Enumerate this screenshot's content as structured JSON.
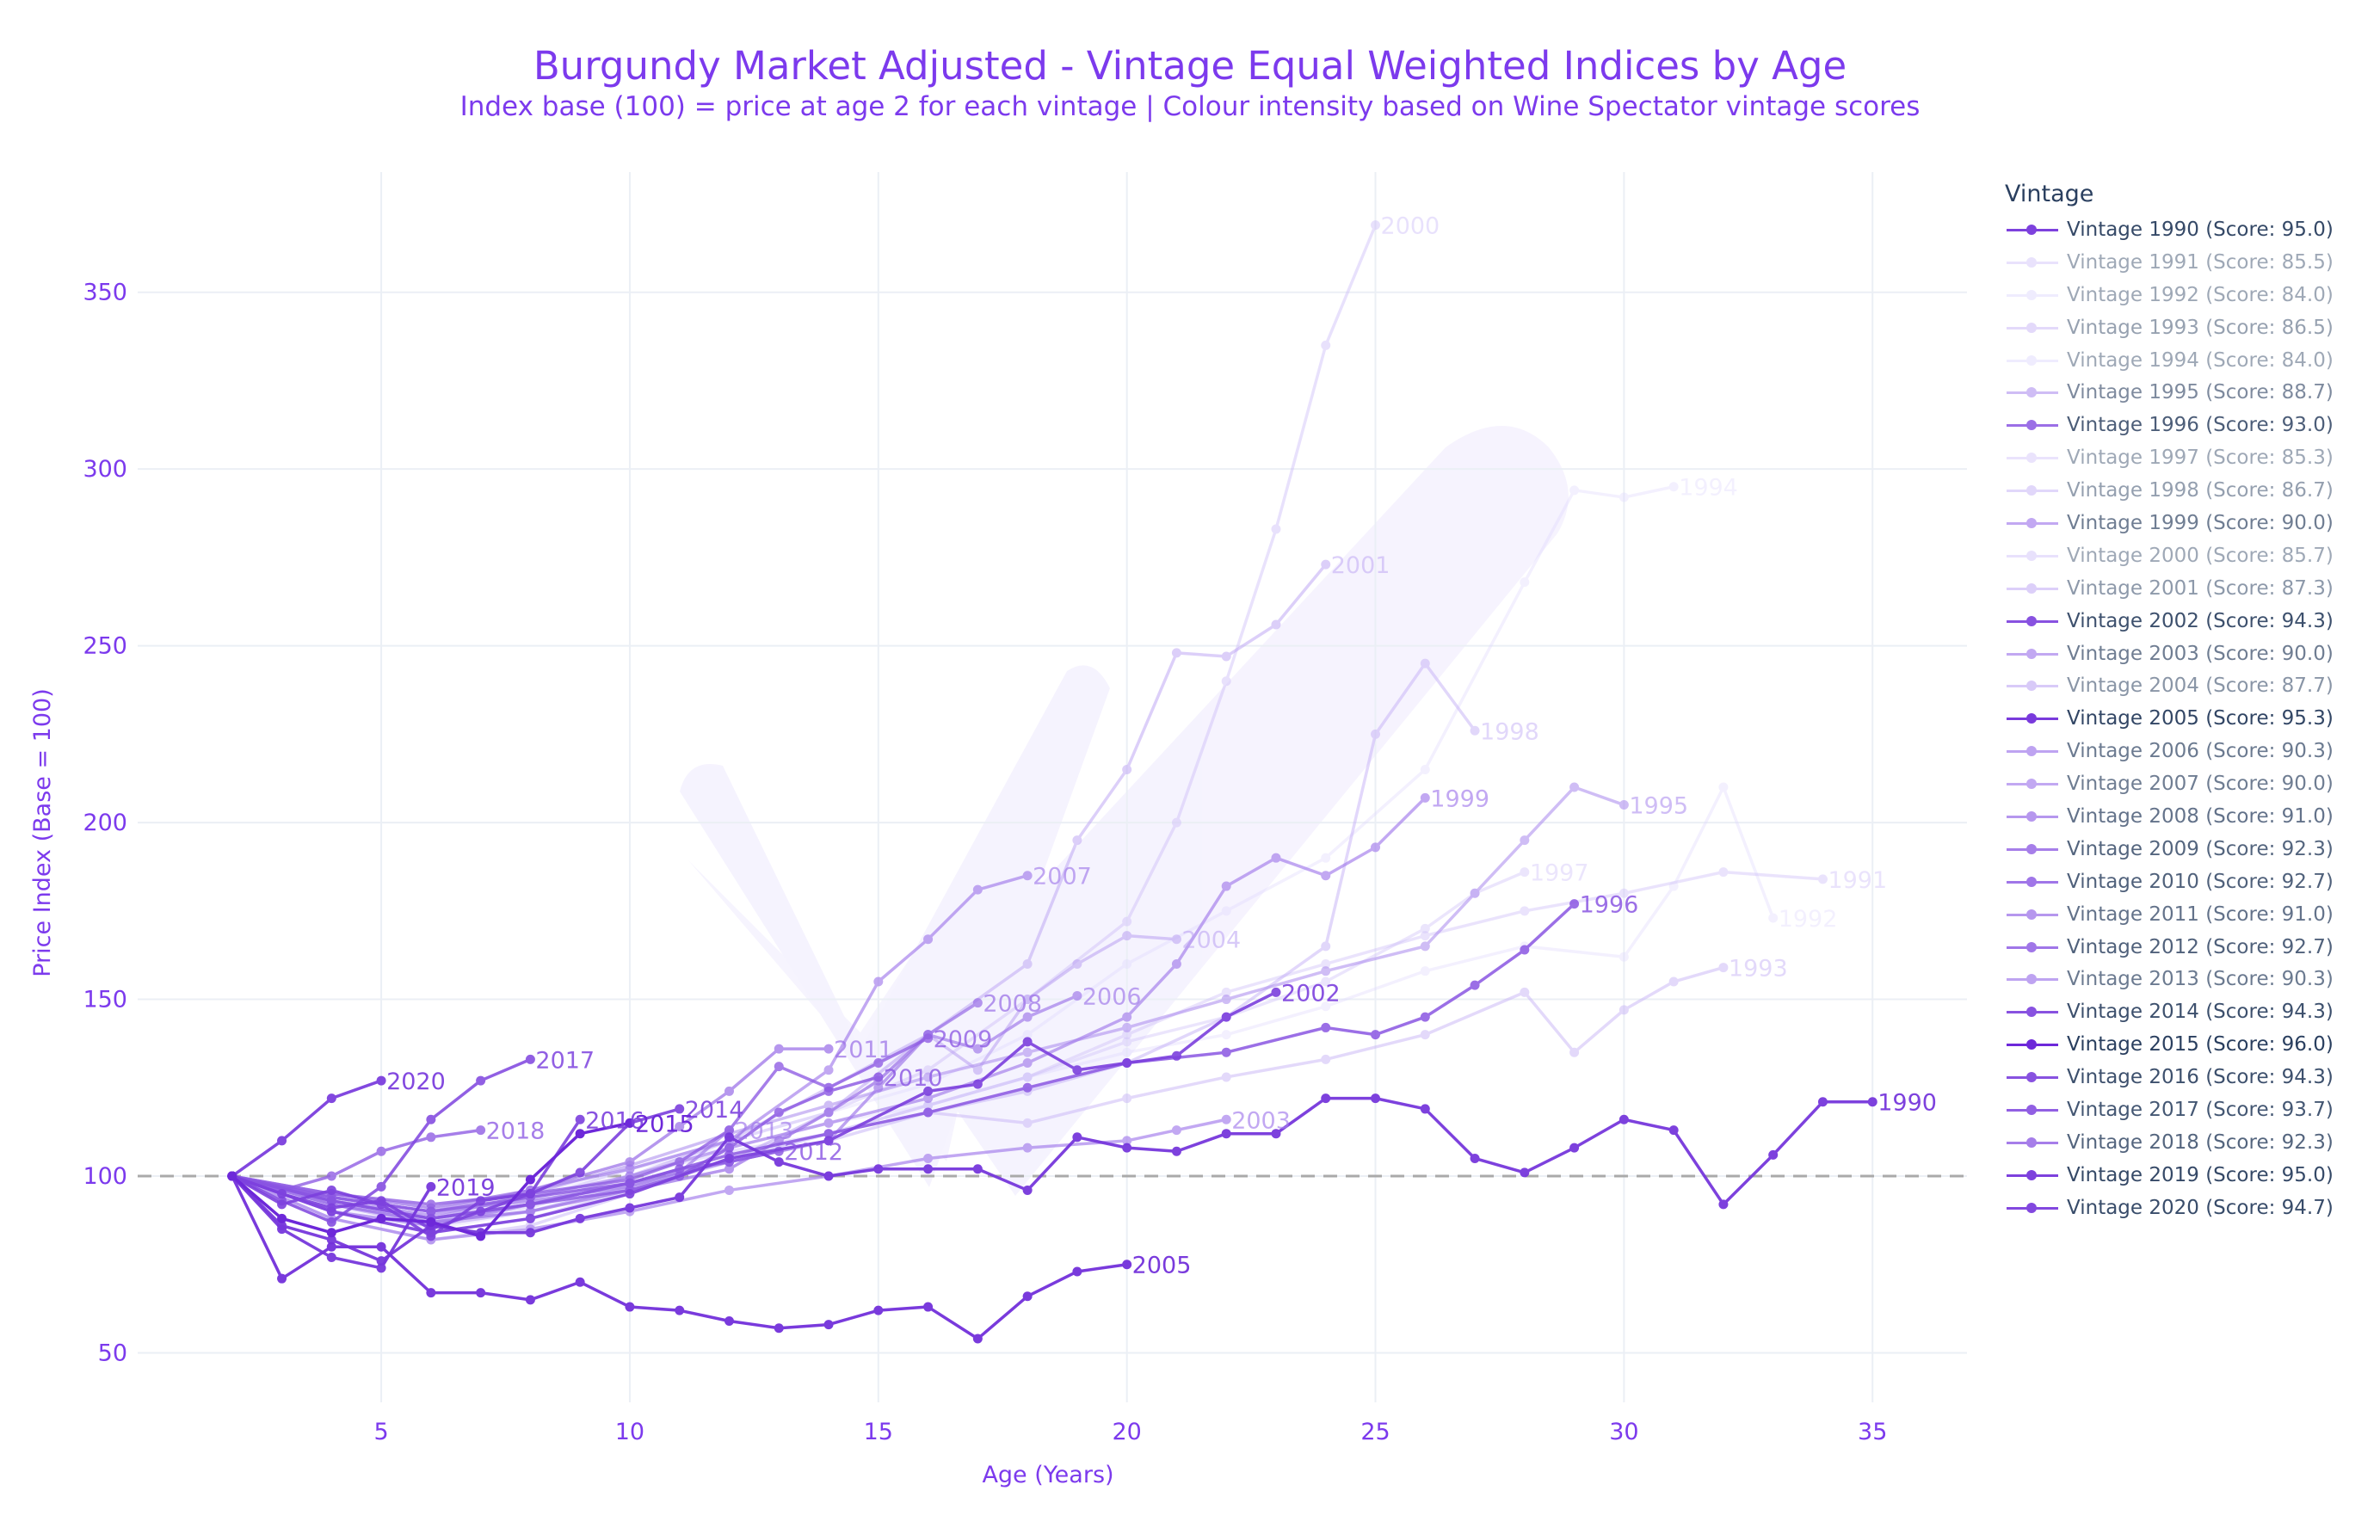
{
  "chart_data": {
    "type": "line",
    "title": "Burgundy Market Adjusted -  Vintage Equal Weighted Indices by Age",
    "subtitle": "Index base (100) = price at age 2 for each vintage | Colour intensity based on Wine Spectator vintage scores",
    "xlabel": "Age (Years)",
    "ylabel": "Price Index (Base = 100)",
    "xlim": [
      0.1,
      36.9
    ],
    "ylim": [
      36,
      384
    ],
    "xticks": [
      5,
      10,
      15,
      20,
      25,
      30,
      35
    ],
    "yticks": [
      50,
      100,
      150,
      200,
      250,
      300,
      350
    ],
    "baseline": 100,
    "grid": true,
    "legend_title": "Vintage",
    "legend_position": "right",
    "series": [
      {
        "name": "Vintage 1990 (Score: 95.0)",
        "label": "1990",
        "score": 95.0,
        "x": [
          2,
          3,
          4,
          5,
          6,
          7,
          8,
          9,
          10,
          11,
          12,
          13,
          14,
          15,
          16,
          17,
          18,
          19,
          20,
          21,
          22,
          23,
          24,
          25,
          26,
          27,
          28,
          29,
          30,
          31,
          32,
          33,
          34,
          35
        ],
        "values": [
          100,
          86,
          82,
          76,
          86,
          84,
          84,
          88,
          91,
          94,
          111,
          104,
          100,
          102,
          102,
          102,
          96,
          111,
          108,
          107,
          112,
          112,
          122,
          122,
          119,
          105,
          101,
          108,
          116,
          113,
          92,
          106,
          121,
          121
        ]
      },
      {
        "name": "Vintage 1991 (Score: 85.5)",
        "label": "1991",
        "score": 85.5,
        "x": [
          2,
          4,
          6,
          8,
          10,
          12,
          14,
          16,
          18,
          20,
          22,
          24,
          26,
          28,
          30,
          32,
          34
        ],
        "values": [
          100,
          95,
          88,
          91,
          100,
          107,
          112,
          120,
          128,
          140,
          152,
          160,
          168,
          175,
          180,
          186,
          184
        ]
      },
      {
        "name": "Vintage 1992 (Score: 84.0)",
        "label": "1992",
        "score": 84.0,
        "x": [
          2,
          4,
          6,
          8,
          10,
          12,
          14,
          16,
          18,
          20,
          22,
          24,
          26,
          28,
          30,
          31,
          32,
          33
        ],
        "values": [
          100,
          92,
          86,
          94,
          102,
          108,
          115,
          120,
          128,
          135,
          140,
          148,
          158,
          165,
          162,
          182,
          210,
          173
        ]
      },
      {
        "name": "Vintage 1993 (Score: 86.5)",
        "label": "1993",
        "score": 86.5,
        "x": [
          2,
          4,
          6,
          8,
          10,
          12,
          14,
          16,
          18,
          20,
          22,
          24,
          26,
          28,
          29,
          30,
          31,
          32
        ],
        "values": [
          100,
          88,
          82,
          86,
          95,
          105,
          112,
          118,
          115,
          122,
          128,
          133,
          140,
          152,
          135,
          147,
          155,
          159
        ]
      },
      {
        "name": "Vintage 1994 (Score: 84.0)",
        "label": "1994",
        "score": 84.0,
        "x": [
          2,
          4,
          6,
          8,
          10,
          12,
          14,
          16,
          18,
          20,
          22,
          24,
          26,
          28,
          29,
          30,
          31
        ],
        "values": [
          100,
          91,
          85,
          90,
          98,
          110,
          118,
          126,
          140,
          160,
          175,
          190,
          215,
          268,
          294,
          292,
          295
        ]
      },
      {
        "name": "Vintage 1995 (Score: 88.7)",
        "label": "1995",
        "score": 88.7,
        "x": [
          2,
          4,
          6,
          8,
          10,
          12,
          14,
          16,
          18,
          20,
          22,
          24,
          26,
          27,
          28,
          29,
          30
        ],
        "values": [
          100,
          92,
          88,
          95,
          103,
          112,
          120,
          128,
          135,
          142,
          150,
          158,
          165,
          180,
          195,
          210,
          205
        ]
      },
      {
        "name": "Vintage 1996 (Score: 93.0)",
        "label": "1996",
        "score": 93.0,
        "x": [
          2,
          4,
          6,
          8,
          10,
          12,
          14,
          16,
          18,
          20,
          22,
          24,
          25,
          26,
          27,
          28,
          29
        ],
        "values": [
          100,
          93,
          88,
          92,
          98,
          106,
          112,
          118,
          125,
          132,
          135,
          142,
          140,
          145,
          154,
          164,
          177
        ]
      },
      {
        "name": "Vintage 1997 (Score: 85.3)",
        "label": "1997",
        "score": 85.3,
        "x": [
          2,
          4,
          6,
          8,
          10,
          12,
          14,
          16,
          18,
          20,
          22,
          24,
          26,
          27,
          28
        ],
        "values": [
          100,
          94,
          87,
          90,
          97,
          104,
          112,
          120,
          128,
          138,
          145,
          155,
          170,
          180,
          186
        ]
      },
      {
        "name": "Vintage 1998 (Score: 86.7)",
        "label": "1998",
        "score": 86.7,
        "x": [
          2,
          4,
          6,
          8,
          10,
          12,
          14,
          16,
          18,
          20,
          22,
          24,
          25,
          26,
          27
        ],
        "values": [
          100,
          90,
          84,
          88,
          96,
          104,
          110,
          118,
          124,
          132,
          145,
          165,
          225,
          245,
          226
        ]
      },
      {
        "name": "Vintage 1999 (Score: 90.0)",
        "label": "1999",
        "score": 90.0,
        "x": [
          2,
          4,
          6,
          8,
          10,
          12,
          14,
          16,
          18,
          20,
          21,
          22,
          23,
          24,
          25,
          26
        ],
        "values": [
          100,
          93,
          89,
          94,
          100,
          108,
          115,
          122,
          132,
          145,
          160,
          182,
          190,
          185,
          193,
          207
        ]
      },
      {
        "name": "Vintage 2000 (Score: 85.7)",
        "label": "2000",
        "score": 85.7,
        "x": [
          2,
          4,
          6,
          8,
          10,
          12,
          14,
          16,
          18,
          20,
          21,
          22,
          23,
          24,
          25
        ],
        "values": [
          100,
          93,
          88,
          93,
          102,
          110,
          118,
          130,
          150,
          172,
          200,
          240,
          283,
          335,
          369
        ]
      },
      {
        "name": "Vintage 2001 (Score: 87.3)",
        "label": "2001",
        "score": 87.3,
        "x": [
          2,
          4,
          6,
          8,
          10,
          12,
          14,
          16,
          18,
          19,
          20,
          21,
          22,
          23,
          24
        ],
        "values": [
          100,
          92,
          87,
          92,
          100,
          110,
          125,
          140,
          160,
          195,
          215,
          248,
          247,
          256,
          273
        ]
      },
      {
        "name": "Vintage 2002 (Score: 94.3)",
        "label": "2002",
        "score": 94.3,
        "x": [
          2,
          4,
          6,
          8,
          10,
          12,
          14,
          16,
          17,
          18,
          19,
          20,
          21,
          22,
          23
        ],
        "values": [
          100,
          90,
          84,
          88,
          95,
          105,
          110,
          124,
          126,
          138,
          130,
          132,
          134,
          145,
          152
        ]
      },
      {
        "name": "Vintage 2003 (Score: 90.0)",
        "label": "2003",
        "score": 90.0,
        "x": [
          2,
          4,
          6,
          8,
          10,
          12,
          14,
          16,
          18,
          20,
          21,
          22
        ],
        "values": [
          100,
          88,
          82,
          85,
          90,
          96,
          100,
          105,
          108,
          110,
          113,
          116
        ]
      },
      {
        "name": "Vintage 2004 (Score: 87.7)",
        "label": "2004",
        "score": 87.7,
        "x": [
          2,
          4,
          6,
          8,
          10,
          12,
          14,
          16,
          17,
          18,
          19,
          20,
          21
        ],
        "values": [
          100,
          92,
          86,
          90,
          97,
          104,
          118,
          140,
          130,
          150,
          160,
          168,
          167
        ]
      },
      {
        "name": "Vintage 2005 (Score: 95.3)",
        "label": "2005",
        "score": 95.3,
        "x": [
          2,
          3,
          4,
          5,
          6,
          7,
          8,
          9,
          10,
          11,
          12,
          13,
          14,
          15,
          16,
          17,
          18,
          19,
          20
        ],
        "values": [
          100,
          71,
          80,
          80,
          67,
          67,
          65,
          70,
          63,
          62,
          59,
          57,
          58,
          62,
          63,
          54,
          66,
          73,
          75
        ]
      },
      {
        "name": "Vintage 2006 (Score: 90.3)",
        "label": "2006",
        "score": 90.3,
        "x": [
          2,
          4,
          6,
          8,
          10,
          12,
          14,
          15,
          16,
          17,
          18,
          19
        ],
        "values": [
          100,
          90,
          86,
          92,
          98,
          104,
          110,
          125,
          140,
          136,
          145,
          151
        ]
      },
      {
        "name": "Vintage 2007 (Score: 90.0)",
        "label": "2007",
        "score": 90.0,
        "x": [
          2,
          4,
          6,
          8,
          10,
          12,
          14,
          15,
          16,
          17,
          18
        ],
        "values": [
          100,
          94,
          90,
          96,
          102,
          110,
          130,
          155,
          167,
          181,
          185
        ]
      },
      {
        "name": "Vintage 2008 (Score: 91.0)",
        "label": "2008",
        "score": 91.0,
        "x": [
          2,
          4,
          6,
          8,
          10,
          12,
          13,
          14,
          15,
          16,
          17
        ],
        "values": [
          100,
          92,
          87,
          90,
          96,
          102,
          110,
          118,
          127,
          140,
          149
        ]
      },
      {
        "name": "Vintage 2009 (Score: 92.3)",
        "label": "2009",
        "score": 92.3,
        "x": [
          2,
          4,
          6,
          8,
          10,
          11,
          12,
          13,
          14,
          15,
          16
        ],
        "values": [
          100,
          95,
          92,
          95,
          99,
          104,
          113,
          131,
          125,
          132,
          139
        ]
      },
      {
        "name": "Vintage 2010 (Score: 92.7)",
        "label": "2010",
        "score": 92.7,
        "x": [
          2,
          4,
          6,
          8,
          10,
          11,
          12,
          13,
          14,
          15
        ],
        "values": [
          100,
          93,
          88,
          92,
          96,
          100,
          108,
          118,
          124,
          128
        ]
      },
      {
        "name": "Vintage 2011 (Score: 91.0)",
        "label": "2011",
        "score": 91.0,
        "x": [
          2,
          4,
          6,
          8,
          10,
          11,
          12,
          13,
          14
        ],
        "values": [
          100,
          95,
          91,
          96,
          104,
          114,
          124,
          136,
          136
        ]
      },
      {
        "name": "Vintage 2012 (Score: 92.7)",
        "label": "2012",
        "score": 92.7,
        "x": [
          2,
          4,
          6,
          8,
          10,
          11,
          12,
          13
        ],
        "values": [
          100,
          94,
          90,
          94,
          98,
          102,
          104,
          107
        ]
      },
      {
        "name": "Vintage 2013 (Score: 90.3)",
        "label": "2013",
        "score": 90.3,
        "x": [
          2,
          4,
          6,
          8,
          10,
          11,
          12
        ],
        "values": [
          100,
          94,
          90,
          93,
          97,
          101,
          113
        ]
      },
      {
        "name": "Vintage 2014 (Score: 94.3)",
        "label": "2014",
        "score": 94.3,
        "x": [
          2,
          3,
          4,
          5,
          6,
          7,
          8,
          9,
          10,
          11
        ],
        "values": [
          100,
          95,
          91,
          93,
          85,
          90,
          95,
          101,
          115,
          119
        ]
      },
      {
        "name": "Vintage 2015 (Score: 96.0)",
        "label": "2015",
        "score": 96.0,
        "x": [
          2,
          3,
          4,
          5,
          6,
          7,
          8,
          9,
          10
        ],
        "values": [
          100,
          88,
          84,
          88,
          87,
          83,
          99,
          112,
          115
        ]
      },
      {
        "name": "Vintage 2016 (Score: 94.3)",
        "label": "2016",
        "score": 94.3,
        "x": [
          2,
          3,
          4,
          5,
          6,
          7,
          8,
          9
        ],
        "values": [
          100,
          92,
          96,
          92,
          83,
          93,
          95,
          116
        ]
      },
      {
        "name": "Vintage 2017 (Score: 93.7)",
        "label": "2017",
        "score": 93.7,
        "x": [
          2,
          3,
          4,
          5,
          6,
          7,
          8
        ],
        "values": [
          100,
          93,
          87,
          97,
          116,
          127,
          133
        ]
      },
      {
        "name": "Vintage 2018 (Score: 92.3)",
        "label": "2018",
        "score": 92.3,
        "x": [
          2,
          3,
          4,
          5,
          6,
          7
        ],
        "values": [
          100,
          96,
          100,
          107,
          111,
          113
        ]
      },
      {
        "name": "Vintage 2019 (Score: 95.0)",
        "label": "2019",
        "score": 95.0,
        "x": [
          2,
          3,
          4,
          5,
          6
        ],
        "values": [
          100,
          85,
          77,
          74,
          97
        ]
      },
      {
        "name": "Vintage 2020 (Score: 94.7)",
        "label": "2020",
        "score": 94.7,
        "x": [
          2,
          3,
          4,
          5
        ],
        "values": [
          100,
          110,
          122,
          127
        ]
      }
    ]
  },
  "colors": {
    "accent": "#7c3aed",
    "line_dark": "#6d28d9",
    "line_light": "#ddd6fe",
    "grid": "#ebeff5",
    "baseline": "#aaaaaa",
    "legend_text": "#2a3f5f"
  }
}
